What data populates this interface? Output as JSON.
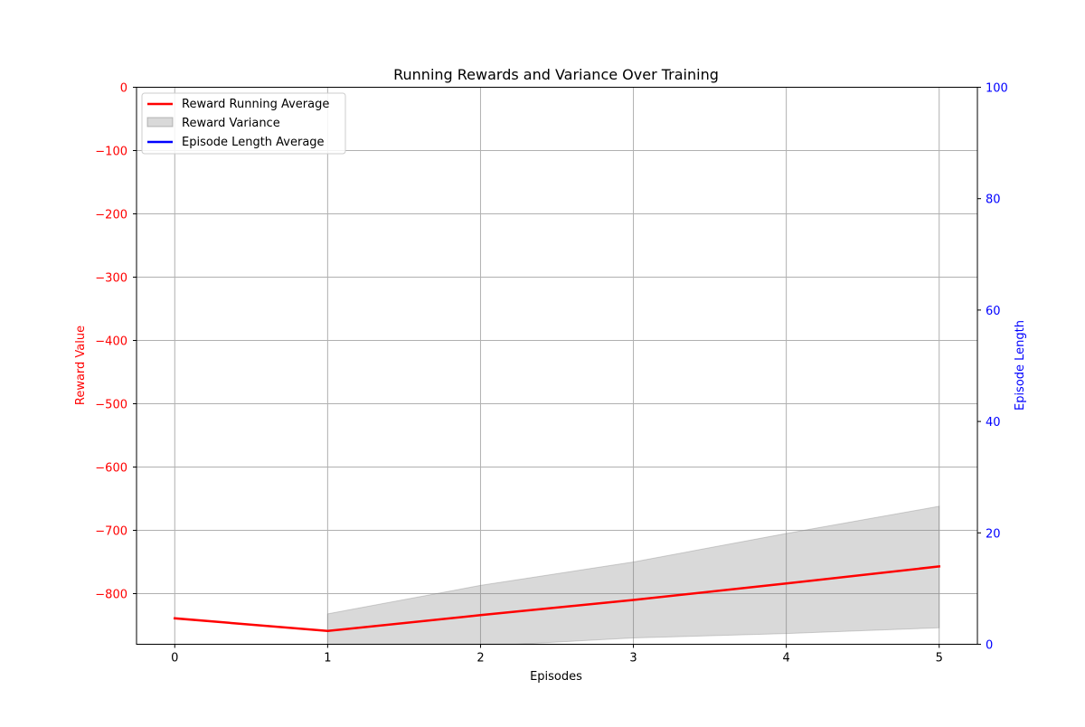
{
  "chart_data": {
    "type": "line",
    "title": "Running Rewards and Variance Over Training",
    "xlabel": "Episodes",
    "ylabel": "Reward Value",
    "y2label": "Episode Length",
    "x": [
      0,
      1,
      2,
      3,
      4,
      5
    ],
    "xlim": [
      -0.25,
      5.25
    ],
    "ylim": [
      -880,
      0
    ],
    "y2lim": [
      0,
      100
    ],
    "xticks": [
      0,
      1,
      2,
      3,
      4,
      5
    ],
    "yticks": [
      0,
      -100,
      -200,
      -300,
      -400,
      -500,
      -600,
      -700,
      -800
    ],
    "y2ticks": [
      0,
      20,
      40,
      60,
      80,
      100
    ],
    "grid": true,
    "legend_position": "top-left",
    "series": [
      {
        "name": "Reward Running Average",
        "kind": "line",
        "axis": "left",
        "color": "#ff0000",
        "x": [
          0,
          1,
          2,
          3,
          4,
          5
        ],
        "values": [
          -839,
          -859,
          -834,
          -810,
          -784,
          -757
        ]
      },
      {
        "name": "Reward Variance",
        "kind": "band",
        "axis": "left",
        "color": "#808080",
        "x": [
          1,
          2,
          3,
          4,
          5
        ],
        "upper": [
          -832,
          -787,
          -750,
          -705,
          -662
        ],
        "lower": [
          -886,
          -883,
          -870,
          -863,
          -854
        ]
      },
      {
        "name": "Episode Length Average",
        "kind": "line",
        "axis": "right",
        "color": "#0000ff",
        "x": [],
        "values": []
      }
    ],
    "colors": {
      "left_axis": "#ff0000",
      "right_axis": "#0000ff",
      "grid": "#b0b0b0",
      "text": "#000000"
    }
  }
}
